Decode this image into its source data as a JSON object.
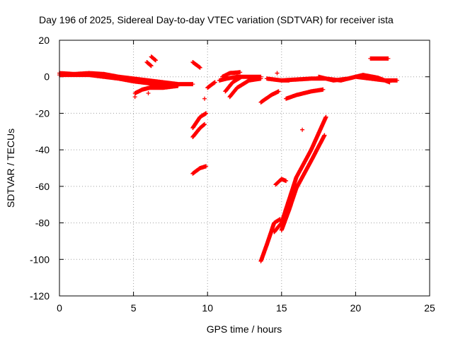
{
  "chart_data": {
    "type": "scatter",
    "title": "Day 196 of 2025, Sidereal Day-to-day VTEC variation (SDTVAR) for receiver ista",
    "xlabel": "GPS time / hours",
    "ylabel": "SDTVAR / TECUs",
    "xlim": [
      0,
      25
    ],
    "ylim": [
      -120,
      20
    ],
    "xticks": [
      "0",
      "5",
      "10",
      "15",
      "20",
      "25"
    ],
    "yticks": [
      "20",
      "0",
      "-20",
      "-40",
      "-60",
      "-80",
      "-100",
      "-120"
    ],
    "grid": true,
    "marker": "+",
    "color": "#ff0000",
    "series": [
      {
        "segments": [
          [
            [
              0,
              2
            ],
            [
              1,
              1.5
            ],
            [
              2,
              2
            ],
            [
              3,
              1.5
            ],
            [
              4,
              0
            ],
            [
              5,
              -1
            ],
            [
              6,
              -2
            ],
            [
              7,
              -3
            ],
            [
              8,
              -4
            ],
            [
              9,
              -4
            ]
          ],
          [
            [
              0,
              1
            ],
            [
              2,
              1
            ],
            [
              4,
              -1
            ],
            [
              5,
              -2.5
            ],
            [
              6,
              -3.5
            ],
            [
              7,
              -5
            ],
            [
              8,
              -4.5
            ]
          ],
          [
            [
              5.1,
              -9
            ],
            [
              5.6,
              -7
            ],
            [
              6.1,
              -6
            ],
            [
              7.0,
              -6
            ],
            [
              8.0,
              -5
            ]
          ],
          [
            [
              5.9,
              8
            ],
            [
              6.2,
              6
            ]
          ],
          [
            [
              6.2,
              11
            ],
            [
              6.5,
              9
            ]
          ],
          [
            [
              9.0,
              8
            ],
            [
              9.5,
              5
            ]
          ],
          [
            [
              9.0,
              -53
            ],
            [
              9.5,
              -50
            ],
            [
              9.9,
              -49
            ]
          ],
          [
            [
              9.0,
              -33
            ],
            [
              9.5,
              -28
            ],
            [
              9.8,
              -26
            ]
          ],
          [
            [
              9.0,
              -28
            ],
            [
              9.5,
              -22
            ],
            [
              9.9,
              -20
            ]
          ],
          [
            [
              10.0,
              -6
            ],
            [
              10.5,
              -3
            ]
          ],
          [
            [
              10.8,
              -2
            ],
            [
              11.3,
              -1
            ],
            [
              12.0,
              0
            ],
            [
              12.5,
              0
            ]
          ],
          [
            [
              11.0,
              0
            ],
            [
              11.5,
              2
            ],
            [
              12.2,
              2.5
            ]
          ],
          [
            [
              11.2,
              -8
            ],
            [
              11.7,
              -3
            ],
            [
              12.3,
              0
            ]
          ],
          [
            [
              11.5,
              -11
            ],
            [
              12.0,
              -6
            ],
            [
              12.8,
              -2
            ],
            [
              13.6,
              -1
            ]
          ],
          [
            [
              12.5,
              0
            ],
            [
              13.6,
              0
            ]
          ],
          [
            [
              14.0,
              -1
            ],
            [
              15.0,
              -2
            ],
            [
              15.5,
              -2
            ]
          ],
          [
            [
              13.6,
              -14
            ],
            [
              14.3,
              -10
            ],
            [
              14.8,
              -8
            ]
          ],
          [
            [
              15.0,
              -2
            ],
            [
              16.0,
              -1.5
            ],
            [
              17.0,
              -1
            ],
            [
              18.0,
              -1
            ],
            [
              19.0,
              -2
            ],
            [
              20.0,
              0
            ],
            [
              21.0,
              -1
            ],
            [
              22.0,
              -2
            ],
            [
              22.8,
              -2
            ]
          ],
          [
            [
              17.5,
              0
            ],
            [
              18.5,
              -2
            ],
            [
              19.5,
              -1
            ],
            [
              20.5,
              1
            ],
            [
              21.5,
              -0.5
            ],
            [
              22.3,
              -3
            ]
          ],
          [
            [
              15.3,
              -12
            ],
            [
              16.0,
              -10
            ],
            [
              17.0,
              -8
            ],
            [
              17.8,
              -7
            ]
          ],
          [
            [
              21.0,
              10
            ],
            [
              22.2,
              10
            ]
          ],
          [
            [
              13.6,
              -101
            ],
            [
              14.0,
              -92
            ],
            [
              14.5,
              -80
            ],
            [
              14.9,
              -78
            ]
          ],
          [
            [
              14.5,
              -85
            ],
            [
              15.0,
              -80
            ],
            [
              16.0,
              -55
            ],
            [
              17.0,
              -40
            ],
            [
              18.0,
              -22
            ]
          ],
          [
            [
              15.0,
              -84
            ],
            [
              15.5,
              -73
            ],
            [
              16.0,
              -61
            ],
            [
              17.0,
              -46
            ],
            [
              17.9,
              -32
            ]
          ],
          [
            [
              14.6,
              -59
            ],
            [
              15.0,
              -56
            ],
            [
              15.3,
              -57
            ]
          ]
        ]
      }
    ],
    "points": [
      [
        5.1,
        -11
      ],
      [
        6.0,
        -9
      ],
      [
        9.8,
        -12
      ],
      [
        14.7,
        2
      ],
      [
        16.4,
        -29
      ]
    ]
  }
}
